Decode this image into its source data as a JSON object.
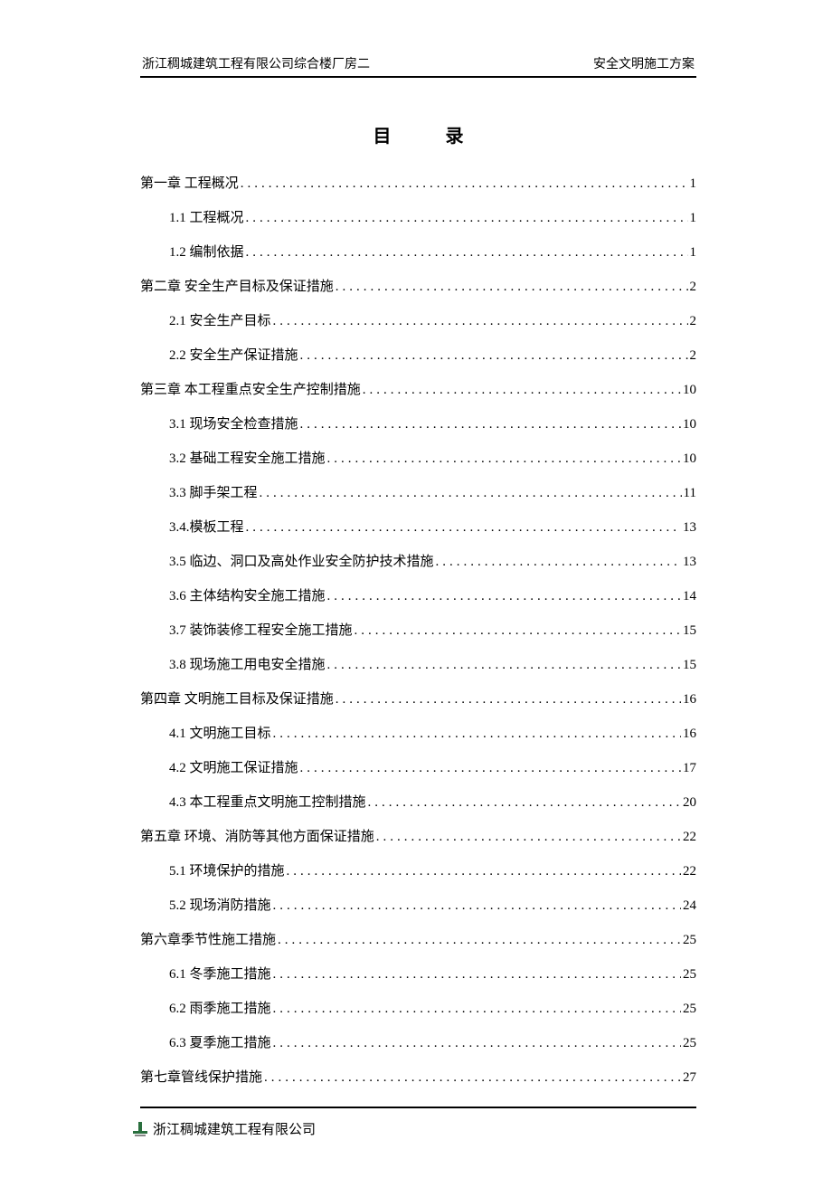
{
  "header": {
    "left": "浙江稠城建筑工程有限公司综合楼厂房二",
    "right": "安全文明施工方案"
  },
  "title": "目录",
  "toc": [
    {
      "level": 1,
      "label": "第一章  工程概况",
      "page": "1"
    },
    {
      "level": 2,
      "label": "1.1 工程概况",
      "page": "1"
    },
    {
      "level": 2,
      "label": "1.2 编制依据 ",
      "page": "1"
    },
    {
      "level": 1,
      "label": "第二章 安全生产目标及保证措施",
      "page": "2"
    },
    {
      "level": 2,
      "label": "2.1 安全生产目标 ",
      "page": "2"
    },
    {
      "level": 2,
      "label": "2.2 安全生产保证措施 ",
      "page": "2"
    },
    {
      "level": 1,
      "label": "第三章 本工程重点安全生产控制措施",
      "page": "10"
    },
    {
      "level": 2,
      "label": "3.1 现场安全检查措施 ",
      "page": "10"
    },
    {
      "level": 2,
      "label": "3.2 基础工程安全施工措施 ",
      "page": "10"
    },
    {
      "level": 2,
      "label": "3.3 脚手架工程 ",
      "page": "11"
    },
    {
      "level": 2,
      "label": "3.4.模板工程 ",
      "page": "13"
    },
    {
      "level": 2,
      "label": "3.5 临边、洞口及高处作业安全防护技术措施",
      "page": "13"
    },
    {
      "level": 2,
      "label": "3.6 主体结构安全施工措施",
      "page": "14"
    },
    {
      "level": 2,
      "label": "3.7 装饰装修工程安全施工措施 ",
      "page": "15"
    },
    {
      "level": 2,
      "label": "3.8 现场施工用电安全措施",
      "page": "15"
    },
    {
      "level": 1,
      "label": "第四章 文明施工目标及保证措施",
      "page": "16"
    },
    {
      "level": 2,
      "label": "4.1 文明施工目标 ",
      "page": "16"
    },
    {
      "level": 2,
      "label": "4.2 文明施工保证措施 ",
      "page": "17"
    },
    {
      "level": 2,
      "label": "4.3 本工程重点文明施工控制措施 ",
      "page": "20"
    },
    {
      "level": 1,
      "label": "第五章 环境、消防等其他方面保证措施",
      "page": "22"
    },
    {
      "level": 2,
      "label": "5.1 环境保护的措施 ",
      "page": "22"
    },
    {
      "level": 2,
      "label": "5.2 现场消防措施 ",
      "page": "24"
    },
    {
      "level": 1,
      "label": "第六章季节性施工措施",
      "page": "25"
    },
    {
      "level": 2,
      "label": "6.1 冬季施工措施 ",
      "page": "25"
    },
    {
      "level": 2,
      "label": "6.2 雨季施工措施 ",
      "page": "25"
    },
    {
      "level": 2,
      "label": "6.3 夏季施工措施 ",
      "page": "25"
    },
    {
      "level": 1,
      "label": "第七章管线保护措施",
      "page": "27"
    }
  ],
  "footer": {
    "company": "浙江稠城建筑工程有限公司"
  },
  "colors": {
    "text": "#000000",
    "background": "#ffffff",
    "logo_accent": "#2a6f3e"
  }
}
